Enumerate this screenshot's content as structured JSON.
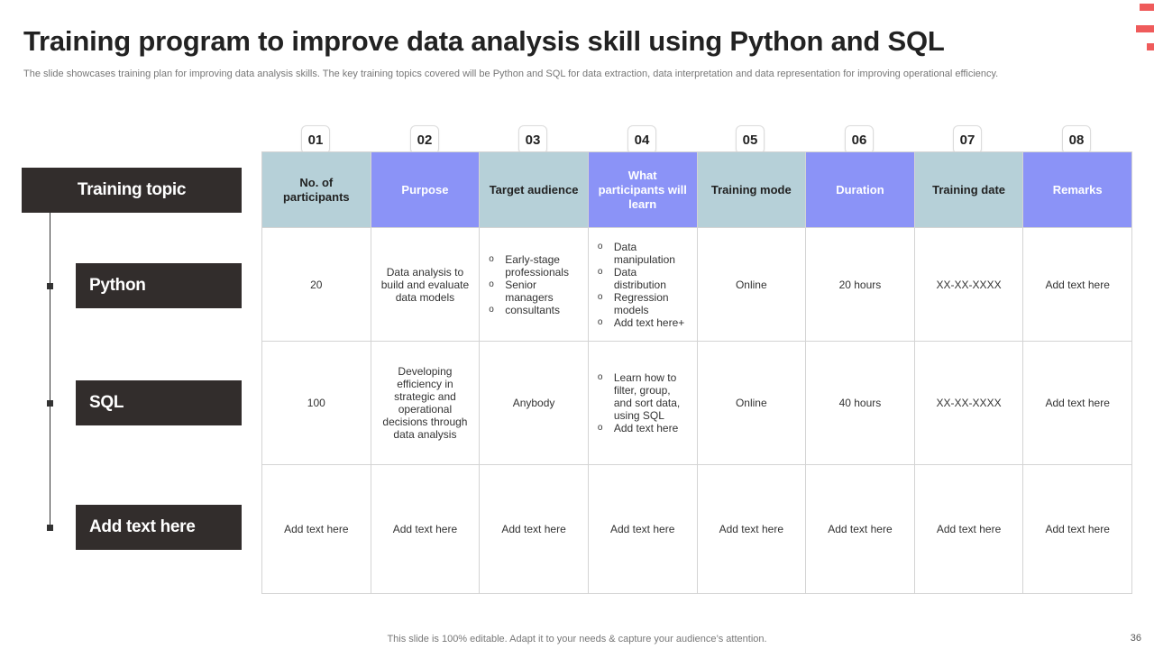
{
  "title": "Training program to improve data analysis skill using Python and SQL",
  "subtitle": "The slide showcases training plan for improving data analysis skills. The key training topics covered will be Python and SQL for data extraction,  data interpretation and data representation for improving operational efficiency.",
  "topic_header": "Training topic",
  "rows": [
    {
      "label": "Python"
    },
    {
      "label": "SQL"
    },
    {
      "label": "Add text here"
    }
  ],
  "columns": [
    {
      "num": "01",
      "label": "No. of participants",
      "color": "#b6d0d8"
    },
    {
      "num": "02",
      "label": "Purpose",
      "color": "#8b93f7"
    },
    {
      "num": "03",
      "label": "Target audience",
      "color": "#b6d0d8"
    },
    {
      "num": "04",
      "label": "What participants will learn",
      "color": "#8b93f7"
    },
    {
      "num": "05",
      "label": "Training mode",
      "color": "#b6d0d8"
    },
    {
      "num": "06",
      "label": "Duration",
      "color": "#8b93f7"
    },
    {
      "num": "07",
      "label": "Training date",
      "color": "#b6d0d8"
    },
    {
      "num": "08",
      "label": "Remarks",
      "color": "#8b93f7"
    }
  ],
  "cells": {
    "python": {
      "participants": "20",
      "purpose": "Data analysis to build and evaluate data models",
      "audience": [
        "Early-stage professionals",
        "Senior managers",
        "consultants"
      ],
      "learn": [
        "Data manipulation",
        "Data distribution",
        "Regression models",
        "Add text here+"
      ],
      "mode": "Online",
      "duration": "20 hours",
      "date": "XX-XX-XXXX",
      "remarks": "Add text here"
    },
    "sql": {
      "participants": "100",
      "purpose": "Developing efficiency in strategic and operational decisions through data analysis",
      "audience": "Anybody",
      "learn": [
        "Learn how to filter, group, and sort data, using SQL",
        "Add text here"
      ],
      "mode": "Online",
      "duration": "40 hours",
      "date": "XX-XX-XXXX",
      "remarks": "Add text here"
    },
    "other": {
      "participants": "Add text here",
      "purpose": "Add text here",
      "audience": "Add text here",
      "learn": "Add text here",
      "mode": "Add text here",
      "duration": "Add text here",
      "date": "Add text here",
      "remarks": "Add text here"
    }
  },
  "footer": "This slide is 100% editable. Adapt it to your needs & capture your audience’s attention.",
  "page_number": "36",
  "colors": {
    "accent_red": "#ef5b5b",
    "dark_label": "#322d2c",
    "teal_header": "#b6d0d8",
    "blue_header": "#8b93f7"
  }
}
